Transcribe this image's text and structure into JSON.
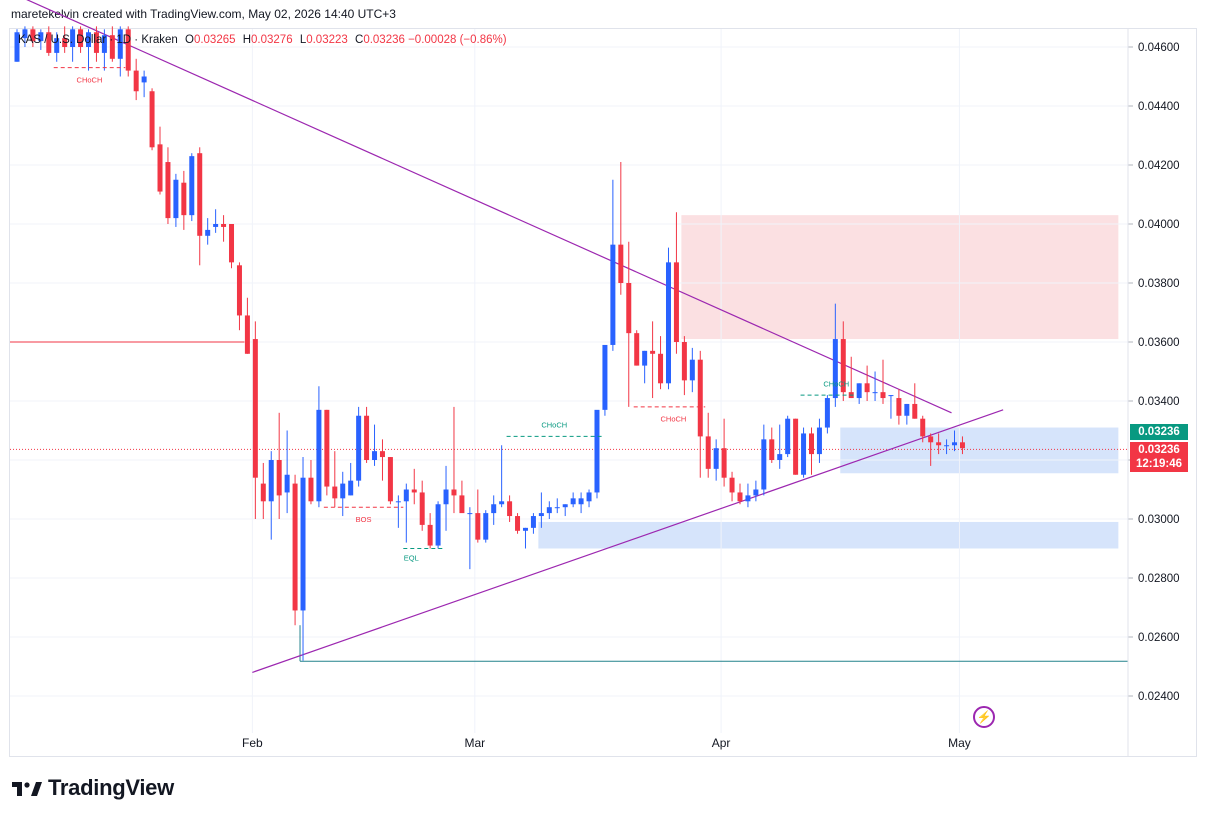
{
  "attribution": "maretekelvin created with TradingView.com, May 02, 2026 14:40 UTC+3",
  "legend": {
    "symbol": "KAS / U.S. Dollar · 1D · Kraken",
    "open_label": "O",
    "open": "0.03265",
    "high_label": "H",
    "high": "0.03276",
    "low_label": "L",
    "low": "0.03223",
    "close_label": "C",
    "close": "0.03236",
    "change": "−0.00028 (−0.86%)"
  },
  "price_tags": {
    "last": "0.03236",
    "current": "0.03236",
    "countdown": "12:19:46"
  },
  "brand": "TradingView",
  "icons": [
    "tradingview-logo-icon",
    "flash-icon"
  ],
  "colors": {
    "up": "#2962ff",
    "down": "#f23645",
    "trendline": "#9c27b0",
    "supply_zone": "#fbe0e2",
    "demand_zone": "#d6e4fb",
    "choch_green": "#089981",
    "choch_red": "#f23645"
  },
  "chart_data": {
    "type": "candlestick",
    "x_tick_labels": [
      "Feb",
      "Mar",
      "Apr",
      "May"
    ],
    "y_tick_labels": [
      "0.04600",
      "0.04400",
      "0.04200",
      "0.04000",
      "0.03800",
      "0.03600",
      "0.03400",
      "0.03200",
      "0.03000",
      "0.02800",
      "0.02600",
      "0.02400"
    ],
    "ylim": [
      0.0233,
      0.0468
    ],
    "y_ticks": [
      0.046,
      0.044,
      0.042,
      0.04,
      0.038,
      0.036,
      0.034,
      0.032,
      0.03,
      0.028,
      0.026,
      0.024
    ],
    "x_ticks": [
      {
        "label": "Feb",
        "index": 30
      },
      {
        "label": "Mar",
        "index": 58
      },
      {
        "label": "Apr",
        "index": 89
      },
      {
        "label": "May",
        "index": 119
      }
    ],
    "n_slots": 139,
    "candles": [
      [
        0.0455,
        0.0466,
        0.0455,
        0.0465
      ],
      [
        0.0463,
        0.0467,
        0.046,
        0.0466
      ],
      [
        0.0466,
        0.0467,
        0.046,
        0.0462
      ],
      [
        0.0462,
        0.0466,
        0.0459,
        0.0465
      ],
      [
        0.0465,
        0.0467,
        0.0457,
        0.0458
      ],
      [
        0.0458,
        0.0465,
        0.0455,
        0.0463
      ],
      [
        0.0463,
        0.0467,
        0.0458,
        0.046
      ],
      [
        0.046,
        0.0467,
        0.0455,
        0.0466
      ],
      [
        0.0466,
        0.0467,
        0.0458,
        0.046
      ],
      [
        0.046,
        0.0466,
        0.0452,
        0.0465
      ],
      [
        0.0465,
        0.0467,
        0.0455,
        0.0458
      ],
      [
        0.0458,
        0.0466,
        0.0452,
        0.0464
      ],
      [
        0.0464,
        0.0467,
        0.0455,
        0.0456
      ],
      [
        0.0456,
        0.0467,
        0.045,
        0.0466
      ],
      [
        0.0466,
        0.0467,
        0.045,
        0.0452
      ],
      [
        0.0452,
        0.0456,
        0.0442,
        0.0445
      ],
      [
        0.0448,
        0.0452,
        0.0443,
        0.045
      ],
      [
        0.0445,
        0.0446,
        0.0425,
        0.0426
      ],
      [
        0.0427,
        0.0433,
        0.041,
        0.0411
      ],
      [
        0.0421,
        0.0426,
        0.04,
        0.0402
      ],
      [
        0.0402,
        0.0417,
        0.0399,
        0.0415
      ],
      [
        0.0414,
        0.0418,
        0.0398,
        0.0403
      ],
      [
        0.0403,
        0.0424,
        0.0401,
        0.0423
      ],
      [
        0.0424,
        0.0426,
        0.0386,
        0.0396
      ],
      [
        0.0396,
        0.0402,
        0.0393,
        0.0398
      ],
      [
        0.0399,
        0.0405,
        0.0397,
        0.04
      ],
      [
        0.04,
        0.0403,
        0.0394,
        0.0399
      ],
      [
        0.04,
        0.04,
        0.0385,
        0.0387
      ],
      [
        0.0386,
        0.0387,
        0.0364,
        0.0369
      ],
      [
        0.0369,
        0.0375,
        0.0356,
        0.0356
      ],
      [
        0.0361,
        0.0367,
        0.03,
        0.0314
      ],
      [
        0.0312,
        0.0319,
        0.03,
        0.0306
      ],
      [
        0.0306,
        0.0323,
        0.0293,
        0.032
      ],
      [
        0.032,
        0.0336,
        0.03,
        0.0308
      ],
      [
        0.0309,
        0.033,
        0.0302,
        0.0315
      ],
      [
        0.0312,
        0.0315,
        0.0264,
        0.0269
      ],
      [
        0.0269,
        0.0321,
        0.0252,
        0.0314
      ],
      [
        0.0314,
        0.032,
        0.0305,
        0.0306
      ],
      [
        0.0306,
        0.0345,
        0.0304,
        0.0337
      ],
      [
        0.0337,
        0.0337,
        0.0308,
        0.0311
      ],
      [
        0.0311,
        0.0323,
        0.0304,
        0.0307
      ],
      [
        0.0307,
        0.0316,
        0.0301,
        0.0312
      ],
      [
        0.0308,
        0.0319,
        0.0308,
        0.0313
      ],
      [
        0.0313,
        0.0338,
        0.0311,
        0.0335
      ],
      [
        0.0335,
        0.0338,
        0.0319,
        0.032
      ],
      [
        0.032,
        0.0332,
        0.0318,
        0.0323
      ],
      [
        0.0323,
        0.0327,
        0.0313,
        0.0321
      ],
      [
        0.0321,
        0.0321,
        0.0305,
        0.0306
      ],
      [
        0.0306,
        0.0308,
        0.0297,
        0.0306
      ],
      [
        0.0306,
        0.0312,
        0.0292,
        0.031
      ],
      [
        0.031,
        0.0317,
        0.0305,
        0.0309
      ],
      [
        0.0309,
        0.0313,
        0.0296,
        0.0298
      ],
      [
        0.0298,
        0.0302,
        0.029,
        0.0291
      ],
      [
        0.0291,
        0.0306,
        0.029,
        0.0305
      ],
      [
        0.0305,
        0.0318,
        0.0296,
        0.031
      ],
      [
        0.031,
        0.0338,
        0.0302,
        0.0308
      ],
      [
        0.0308,
        0.0313,
        0.0303,
        0.0302
      ],
      [
        0.0302,
        0.0304,
        0.0283,
        0.0302
      ],
      [
        0.0302,
        0.031,
        0.0292,
        0.0293
      ],
      [
        0.0293,
        0.0303,
        0.0292,
        0.0302
      ],
      [
        0.0302,
        0.0308,
        0.0298,
        0.0305
      ],
      [
        0.0305,
        0.0325,
        0.0304,
        0.0306
      ],
      [
        0.0306,
        0.0308,
        0.0299,
        0.0301
      ],
      [
        0.0301,
        0.0302,
        0.0295,
        0.0296
      ],
      [
        0.0296,
        0.0297,
        0.029,
        0.0297
      ],
      [
        0.0297,
        0.0302,
        0.0295,
        0.0301
      ],
      [
        0.0301,
        0.0309,
        0.0297,
        0.0302
      ],
      [
        0.0302,
        0.0306,
        0.03,
        0.0304
      ],
      [
        0.0304,
        0.0307,
        0.0302,
        0.0304
      ],
      [
        0.0304,
        0.0305,
        0.0301,
        0.0305
      ],
      [
        0.0305,
        0.0309,
        0.0304,
        0.0307
      ],
      [
        0.0305,
        0.0309,
        0.0302,
        0.0307
      ],
      [
        0.0306,
        0.031,
        0.0304,
        0.0309
      ],
      [
        0.0309,
        0.0336,
        0.0307,
        0.0337
      ],
      [
        0.0337,
        0.0358,
        0.0335,
        0.0359
      ],
      [
        0.0359,
        0.0415,
        0.0357,
        0.0393
      ],
      [
        0.0393,
        0.0421,
        0.0376,
        0.038
      ],
      [
        0.038,
        0.0394,
        0.0338,
        0.0363
      ],
      [
        0.0363,
        0.0364,
        0.0352,
        0.0352
      ],
      [
        0.0352,
        0.0357,
        0.0346,
        0.0357
      ],
      [
        0.0357,
        0.0367,
        0.0341,
        0.0356
      ],
      [
        0.0356,
        0.0362,
        0.0344,
        0.0346
      ],
      [
        0.0346,
        0.0392,
        0.0344,
        0.0387
      ],
      [
        0.0387,
        0.0404,
        0.0356,
        0.036
      ],
      [
        0.036,
        0.0362,
        0.0342,
        0.0347
      ],
      [
        0.0347,
        0.0358,
        0.0343,
        0.0354
      ],
      [
        0.0354,
        0.0357,
        0.0314,
        0.0328
      ],
      [
        0.0328,
        0.0336,
        0.0314,
        0.0317
      ],
      [
        0.0317,
        0.0327,
        0.0313,
        0.0324
      ],
      [
        0.0324,
        0.0334,
        0.0311,
        0.0314
      ],
      [
        0.0314,
        0.0316,
        0.0306,
        0.0309
      ],
      [
        0.0309,
        0.0312,
        0.0305,
        0.0306
      ],
      [
        0.0306,
        0.0312,
        0.0304,
        0.0308
      ],
      [
        0.0308,
        0.0313,
        0.0306,
        0.031
      ],
      [
        0.031,
        0.0332,
        0.0308,
        0.0327
      ],
      [
        0.0327,
        0.0331,
        0.0319,
        0.032
      ],
      [
        0.032,
        0.0332,
        0.0317,
        0.0322
      ],
      [
        0.0322,
        0.0335,
        0.0321,
        0.0334
      ],
      [
        0.0334,
        0.0334,
        0.0315,
        0.0315
      ],
      [
        0.0315,
        0.0331,
        0.0314,
        0.0329
      ],
      [
        0.0329,
        0.0331,
        0.0315,
        0.0322
      ],
      [
        0.0322,
        0.0334,
        0.0319,
        0.0331
      ],
      [
        0.0331,
        0.0342,
        0.0329,
        0.0341
      ],
      [
        0.0341,
        0.0373,
        0.0338,
        0.0361
      ],
      [
        0.0361,
        0.0367,
        0.034,
        0.0343
      ],
      [
        0.0343,
        0.0355,
        0.0341,
        0.0341
      ],
      [
        0.0341,
        0.0346,
        0.0339,
        0.0346
      ],
      [
        0.0346,
        0.0352,
        0.034,
        0.0343
      ],
      [
        0.0343,
        0.035,
        0.034,
        0.0343
      ],
      [
        0.0343,
        0.0354,
        0.0339,
        0.0341
      ],
      [
        0.0342,
        0.0342,
        0.0334,
        0.0342
      ],
      [
        0.0341,
        0.0344,
        0.0332,
        0.0335
      ],
      [
        0.0335,
        0.0339,
        0.0332,
        0.0339
      ],
      [
        0.0339,
        0.0346,
        0.0334,
        0.0334
      ],
      [
        0.0334,
        0.0335,
        0.0326,
        0.0328
      ],
      [
        0.0328,
        0.0329,
        0.0318,
        0.0326
      ],
      [
        0.0326,
        0.0329,
        0.0322,
        0.0325
      ],
      [
        0.0325,
        0.0327,
        0.0322,
        0.0325
      ],
      [
        0.0325,
        0.033,
        0.0323,
        0.0326
      ],
      [
        0.0326,
        0.0328,
        0.0322,
        0.0324
      ]
    ],
    "lines": {
      "descending_trendline": {
        "from": [
          0.0,
          0.0478
        ],
        "to": [
          118.0,
          0.0336
        ]
      },
      "ascending_trendline": {
        "from": [
          30.0,
          0.0248
        ],
        "to": [
          124.5,
          0.0337
        ]
      },
      "low_level": {
        "price": 0.02518,
        "from": 36.0,
        "to": 139.0
      },
      "red_level": {
        "price": 0.036,
        "from": 0.0,
        "to": 29.0
      },
      "current_price": {
        "price": 0.03236
      }
    },
    "zones": [
      {
        "kind": "supply",
        "from": 84.0,
        "to": 139.0,
        "y_low": 0.0361,
        "y_high": 0.0403
      },
      {
        "kind": "demand",
        "from": 104.0,
        "to": 139.0,
        "y_low": 0.03155,
        "y_high": 0.0331
      },
      {
        "kind": "demand",
        "from": 66.0,
        "to": 139.0,
        "y_low": 0.029,
        "y_high": 0.0299
      }
    ],
    "annotations": [
      {
        "text": "CHoCH",
        "color": "red",
        "line_from": 5.0,
        "line_to": 14.0,
        "price": 0.0453,
        "label_index": 9.5,
        "label_price": 0.0449
      },
      {
        "text": "BOS",
        "color": "red",
        "line_from": 39.0,
        "line_to": 49.0,
        "price": 0.0304,
        "label_index": 44.0,
        "label_price": 0.03
      },
      {
        "text": "EQL",
        "color": "green",
        "line_from": 49.0,
        "line_to": 54.0,
        "price": 0.029,
        "label_index": 50.0,
        "label_price": 0.0287
      },
      {
        "text": "CHoCH",
        "color": "green",
        "line_from": 62.0,
        "line_to": 74.0,
        "price": 0.0328,
        "label_index": 68.0,
        "label_price": 0.0332
      },
      {
        "text": "CHoCH",
        "color": "red",
        "line_from": 78.0,
        "line_to": 87.0,
        "price": 0.0338,
        "label_index": 83.0,
        "label_price": 0.0334
      },
      {
        "text": "CHoCH",
        "color": "green",
        "line_from": 99.0,
        "line_to": 106.0,
        "price": 0.0342,
        "label_index": 103.5,
        "label_price": 0.0346
      }
    ]
  }
}
